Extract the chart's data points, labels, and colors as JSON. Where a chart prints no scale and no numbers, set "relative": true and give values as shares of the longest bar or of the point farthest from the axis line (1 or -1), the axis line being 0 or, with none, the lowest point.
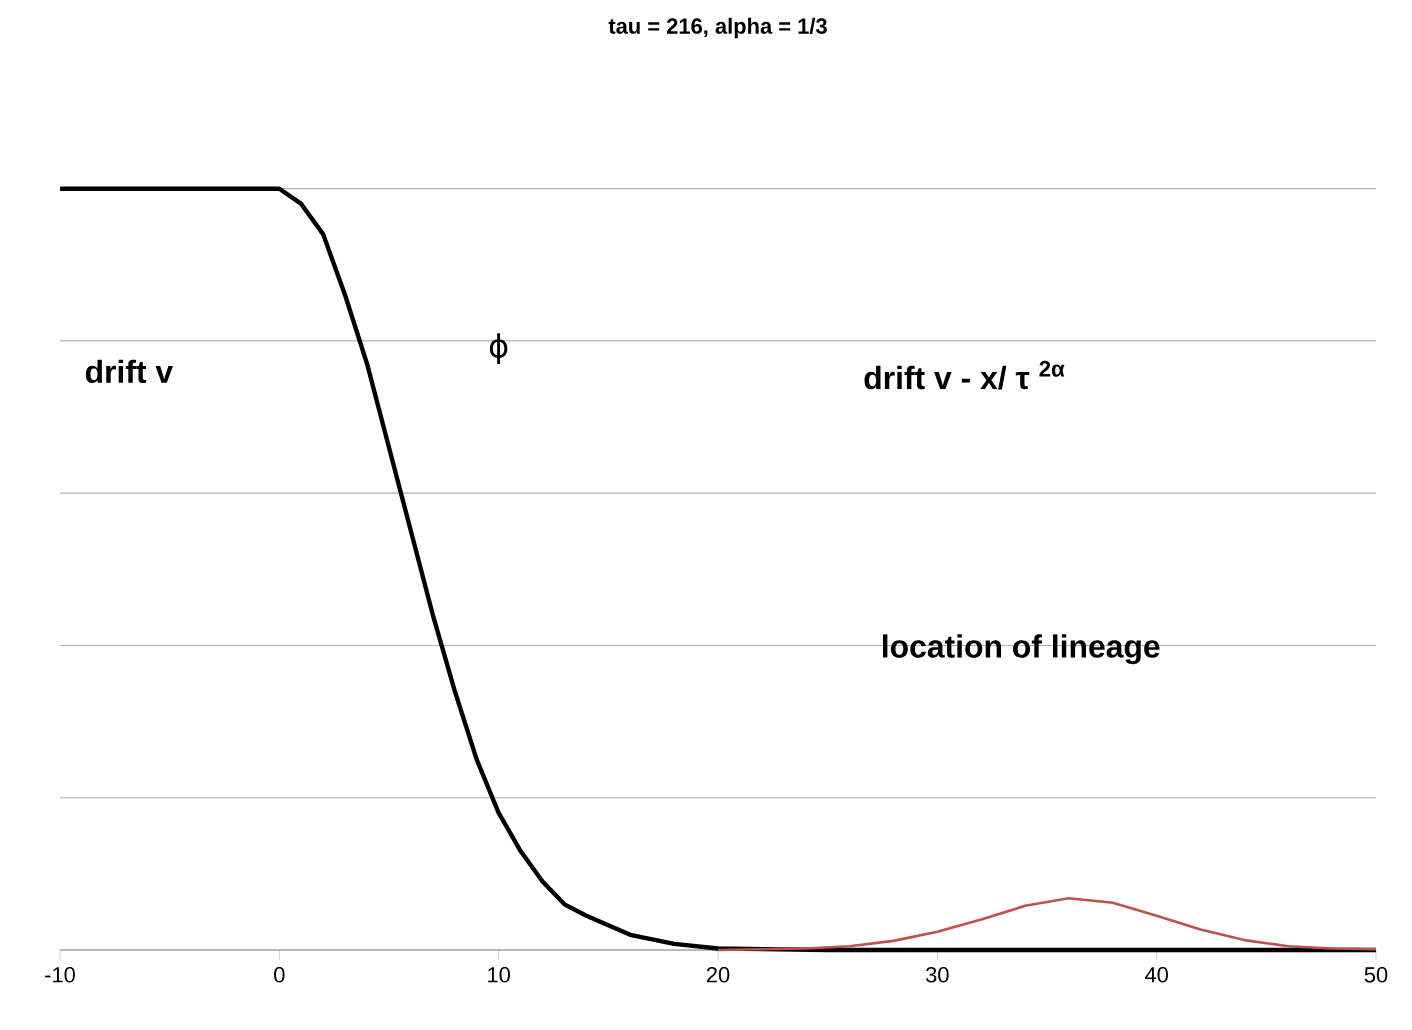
{
  "chart_data": {
    "type": "line",
    "title": "tau = 216, alpha = 1/3",
    "relative": true,
    "x": [
      -10,
      -5,
      0,
      1,
      2,
      3,
      4,
      5,
      6,
      7,
      8,
      9,
      10,
      11,
      12,
      13,
      14,
      16,
      18,
      20,
      25,
      30,
      35,
      40,
      45,
      50
    ],
    "series": [
      {
        "color": "#000000",
        "values": [
          1,
          1,
          1,
          0.98,
          0.94,
          0.86,
          0.77,
          0.66,
          0.55,
          0.44,
          0.34,
          0.25,
          0.18,
          0.13,
          0.09,
          0.06,
          0.045,
          0.02,
          0.008,
          0.002,
          0,
          0,
          0,
          0,
          0,
          0
        ]
      },
      {
        "color": "#c0504d",
        "x": [
          20,
          22,
          24,
          26,
          28,
          30,
          32,
          34,
          36,
          38,
          40,
          42,
          44,
          46,
          48,
          50
        ],
        "values": [
          0,
          0.001,
          0.002,
          0.005,
          0.012,
          0.024,
          0.04,
          0.058,
          0.068,
          0.062,
          0.045,
          0.027,
          0.013,
          0.005,
          0.002,
          0.001
        ]
      }
    ],
    "annotations": [
      "drift v",
      "ϕ",
      "drift v - x/ τ $^{2α}$",
      "location of lineage"
    ],
    "xlim": [
      -10,
      50
    ],
    "xticks": [
      -10,
      0,
      10,
      20,
      30,
      40,
      50
    ],
    "grid": "y"
  }
}
